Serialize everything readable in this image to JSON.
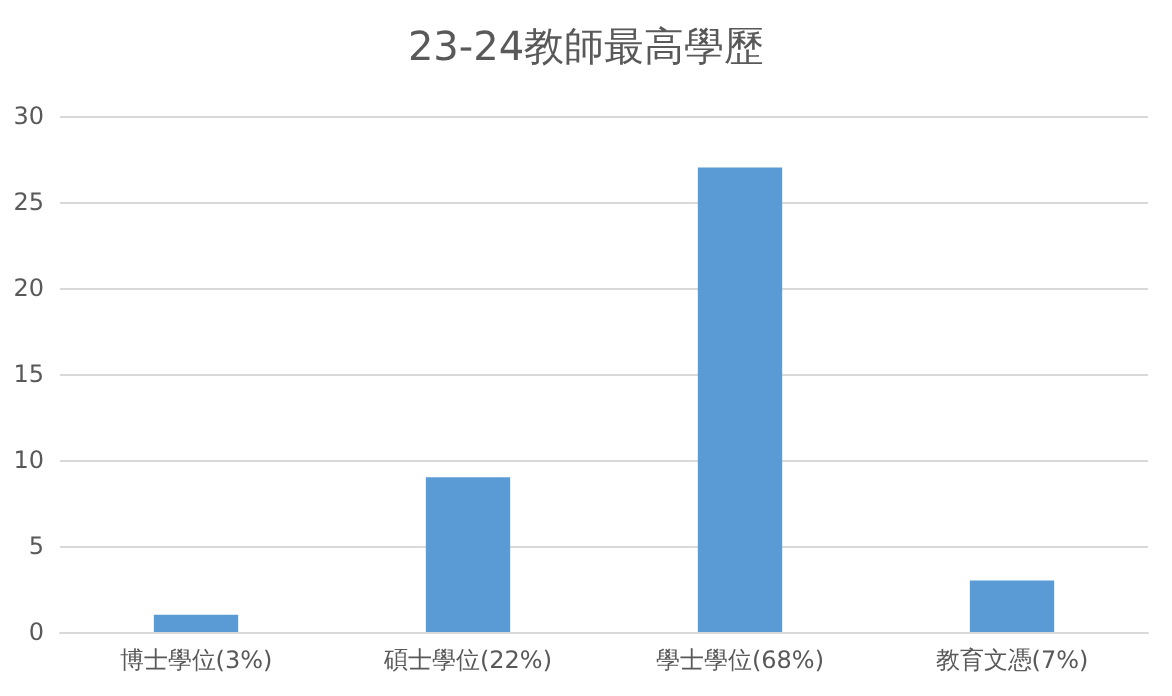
{
  "chart_data": {
    "type": "bar",
    "title": "23-24教師最高學歷",
    "categories": [
      "博士學位(3%)",
      "碩士學位(22%)",
      "學士學位(68%)",
      "教育文憑(7%)"
    ],
    "values": [
      1,
      9,
      27,
      3
    ],
    "color": "#5b9bd5",
    "ylim": [
      0,
      30
    ],
    "yticks": [
      0,
      5,
      10,
      15,
      20,
      25,
      30
    ],
    "grid": "y"
  }
}
